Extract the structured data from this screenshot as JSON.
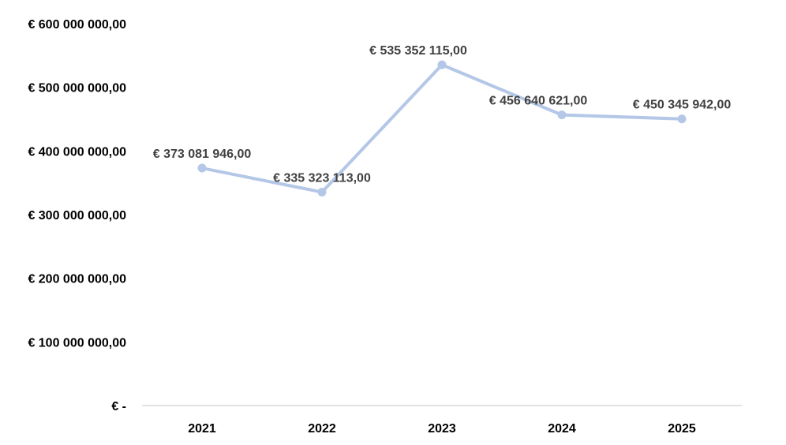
{
  "chart_data": {
    "type": "line",
    "categories": [
      "2021",
      "2022",
      "2023",
      "2024",
      "2025"
    ],
    "series": [
      {
        "values": [
          373081946,
          335323113,
          535352115,
          456640621,
          450345942
        ],
        "data_labels": [
          "€ 373 081 946,00",
          "€ 335 323 113,00",
          "€ 535 352 115,00",
          "€ 456 640 621,00",
          "€ 450 345 942,00"
        ]
      }
    ],
    "y_ticks": [
      {
        "value": 0,
        "label": "€ -"
      },
      {
        "value": 100000000,
        "label": "€ 100 000 000,00"
      },
      {
        "value": 200000000,
        "label": "€ 200 000 000,00"
      },
      {
        "value": 300000000,
        "label": "€ 300 000 000,00"
      },
      {
        "value": 400000000,
        "label": "€ 400 000 000,00"
      },
      {
        "value": 500000000,
        "label": "€ 500 000 000,00"
      },
      {
        "value": 600000000,
        "label": "€ 600 000 000,00"
      }
    ],
    "ylim": [
      0,
      600000000
    ],
    "grid": false,
    "legend": "none",
    "colors": {
      "line": "#b4c7e7",
      "axis": "#d9d9d9",
      "tick_text": "#000000",
      "label_text": "#404040"
    }
  }
}
